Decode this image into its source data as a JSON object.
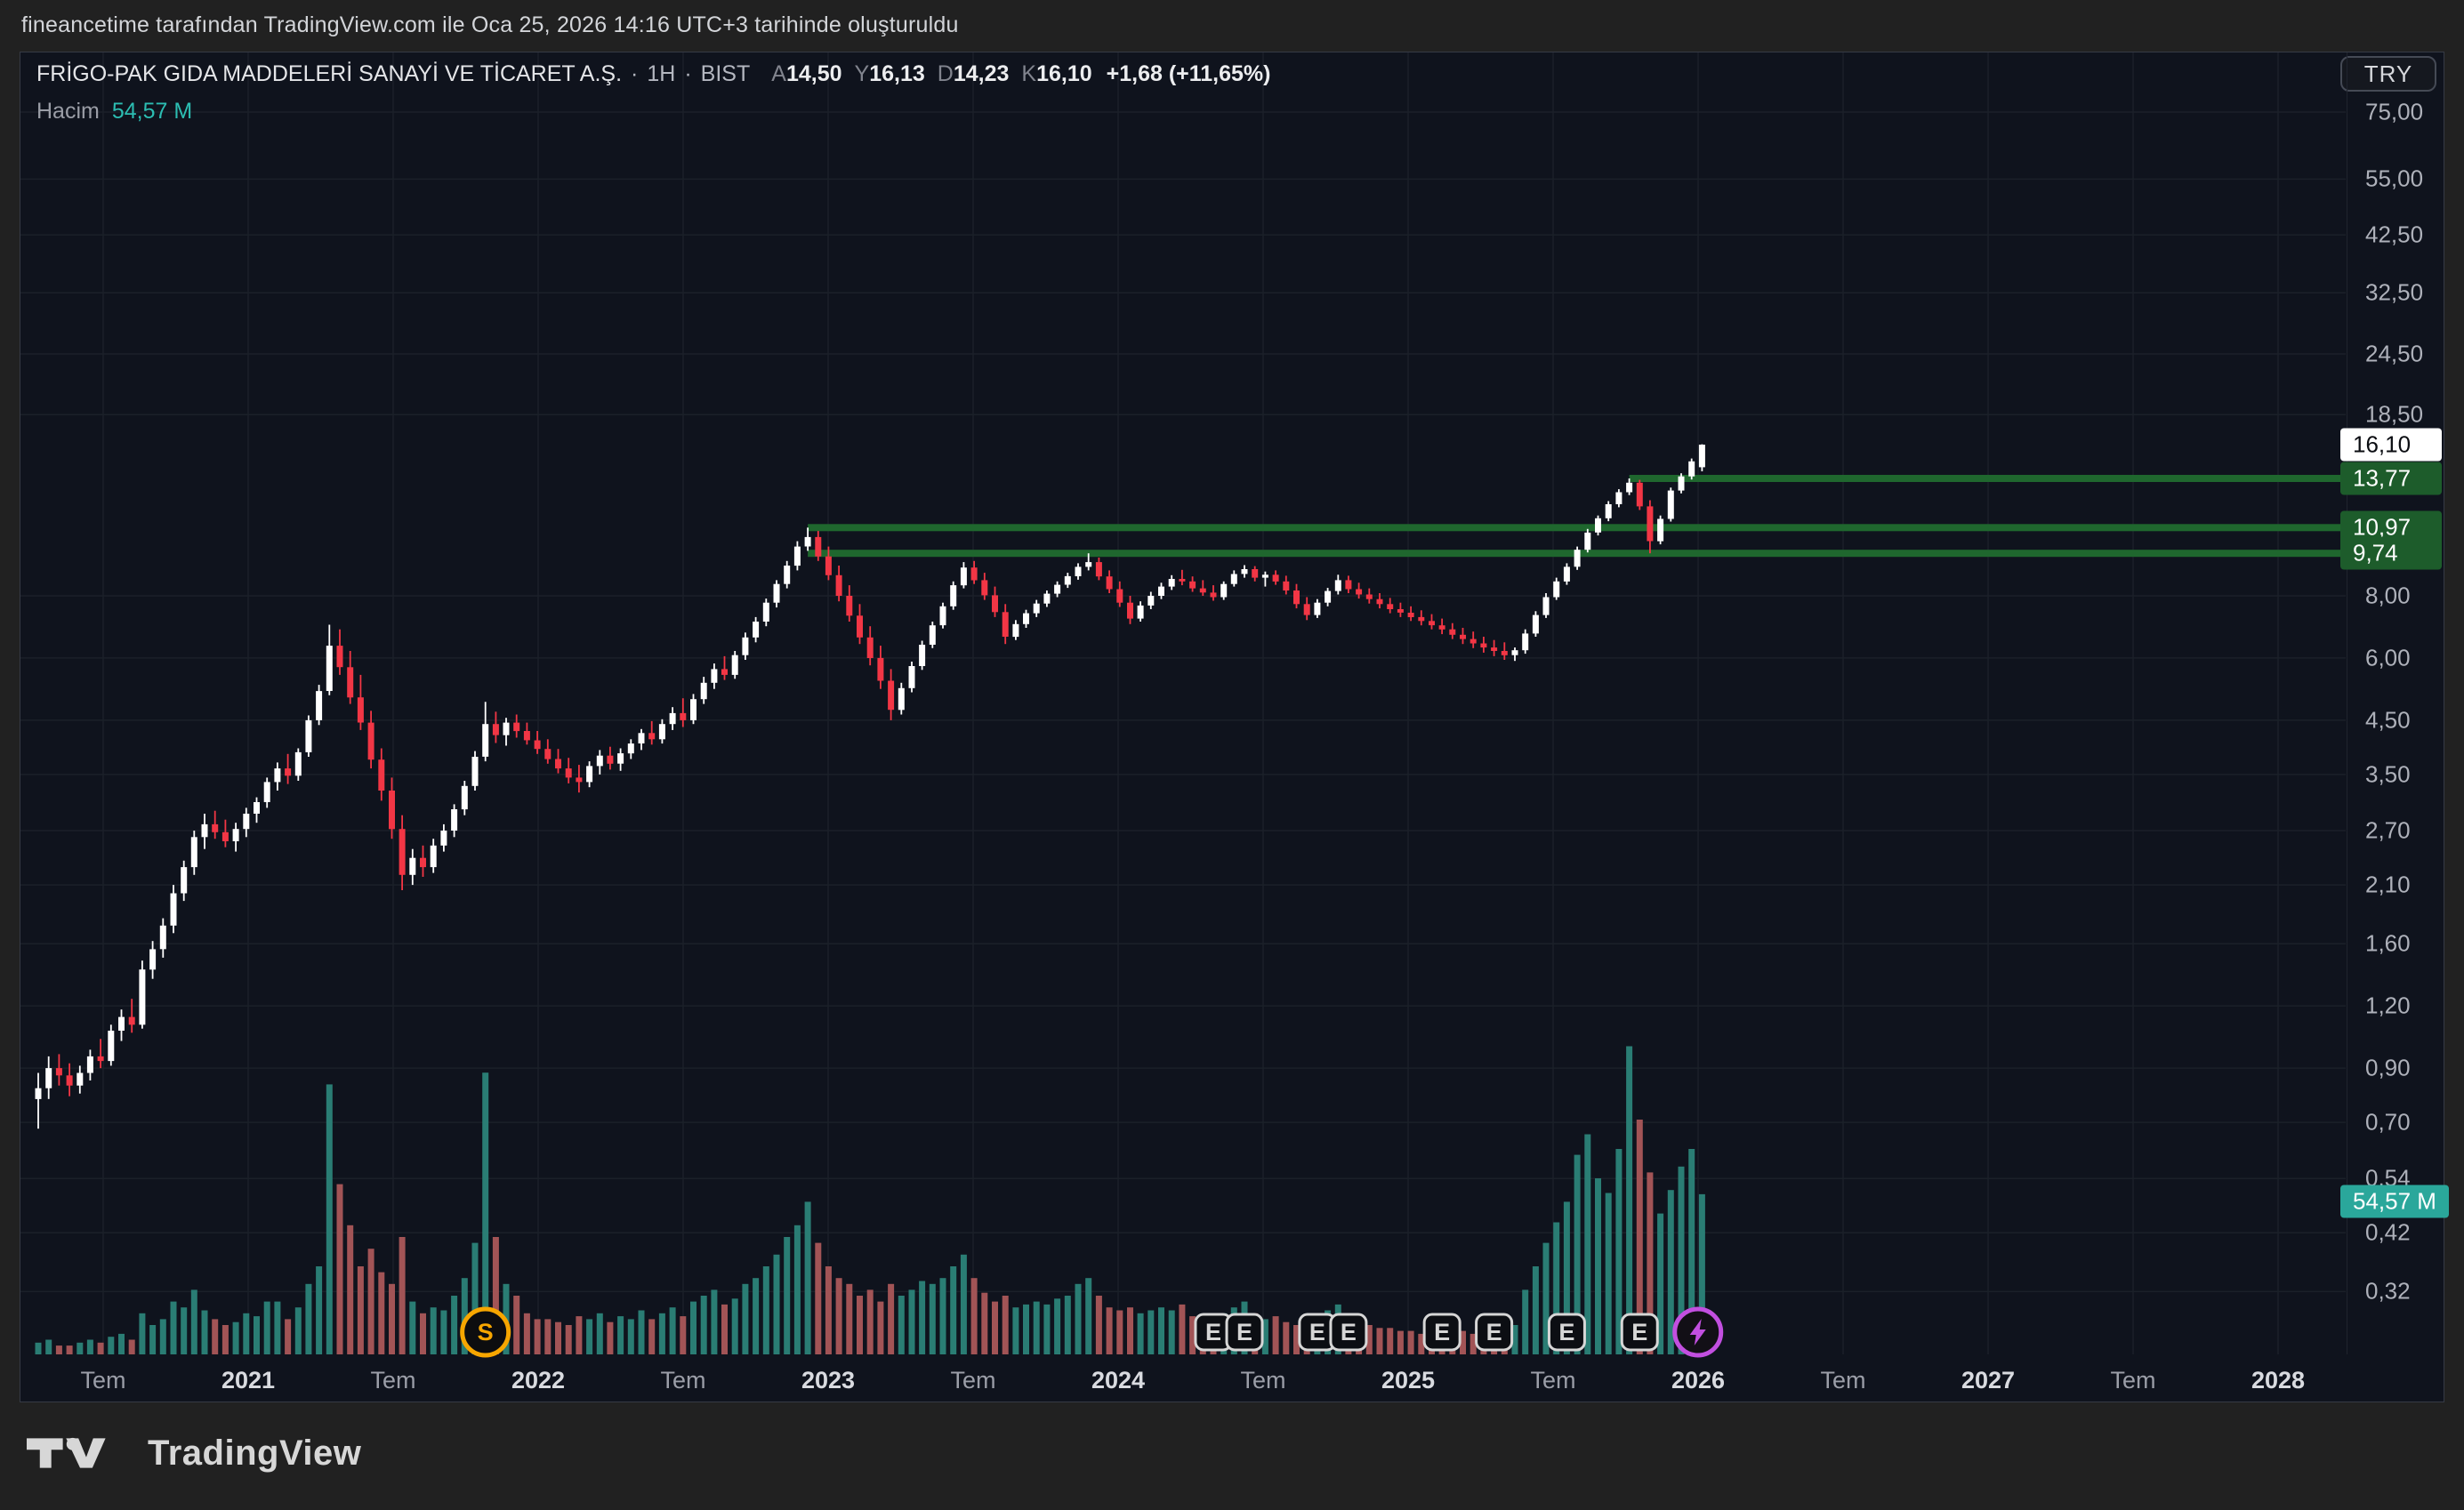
{
  "attribution": "fineancetime tarafından TradingView.com ile Oca 25, 2026 14:16 UTC+3 tarihinde oluşturuldu",
  "legend": {
    "symbol": "FRİGO-PAK GIDA MADDELERİ SANAYİ VE TİCARET A.Ş.",
    "separator": "·",
    "interval": "1H",
    "exchange": "BIST",
    "ohlc": [
      {
        "k": "A",
        "v": "14,50"
      },
      {
        "k": "Y",
        "v": "16,13"
      },
      {
        "k": "D",
        "v": "14,23"
      },
      {
        "k": "K",
        "v": "16,10"
      }
    ],
    "change": "+1,68 (+11,65%)",
    "volume_label": "Hacim",
    "volume_value": "54,57 M"
  },
  "currency_button": "TRY",
  "logo_text": "TradingView",
  "price_axis": {
    "ticks": [
      {
        "label": "75,00",
        "price": 75
      },
      {
        "label": "55,00",
        "price": 55
      },
      {
        "label": "42,50",
        "price": 42.5
      },
      {
        "label": "32,50",
        "price": 32.5
      },
      {
        "label": "24,50",
        "price": 24.5
      },
      {
        "label": "18,50",
        "price": 18.5
      },
      {
        "label": "8,00",
        "price": 8
      },
      {
        "label": "6,00",
        "price": 6
      },
      {
        "label": "4,50",
        "price": 4.5
      },
      {
        "label": "3,50",
        "price": 3.5
      },
      {
        "label": "2,70",
        "price": 2.7
      },
      {
        "label": "2,10",
        "price": 2.1
      },
      {
        "label": "1,60",
        "price": 1.6
      },
      {
        "label": "1,20",
        "price": 1.2
      },
      {
        "label": "0,90",
        "price": 0.9
      },
      {
        "label": "0,70",
        "price": 0.7
      },
      {
        "label": "0,54",
        "price": 0.54
      },
      {
        "label": "0,42",
        "price": 0.42
      },
      {
        "label": "0,32",
        "price": 0.32
      }
    ],
    "last_price": {
      "label": "16,10",
      "price": 16.1
    },
    "level_labels": [
      {
        "label": "13,77",
        "price": 13.77
      },
      {
        "label": "10,97",
        "price": 10.97
      },
      {
        "label": "9,74",
        "price": 9.74
      }
    ],
    "volume_chip": {
      "label": "54,57 M"
    }
  },
  "time_axis": {
    "ticks": [
      {
        "label": "Tem",
        "t": 2020.5,
        "major": false
      },
      {
        "label": "2021",
        "t": 2021.0,
        "major": true
      },
      {
        "label": "Tem",
        "t": 2021.5,
        "major": false
      },
      {
        "label": "2022",
        "t": 2022.0,
        "major": true
      },
      {
        "label": "Tem",
        "t": 2022.5,
        "major": false
      },
      {
        "label": "2023",
        "t": 2023.0,
        "major": true
      },
      {
        "label": "Tem",
        "t": 2023.5,
        "major": false
      },
      {
        "label": "2024",
        "t": 2024.0,
        "major": true
      },
      {
        "label": "Tem",
        "t": 2024.5,
        "major": false
      },
      {
        "label": "2025",
        "t": 2025.0,
        "major": true
      },
      {
        "label": "Tem",
        "t": 2025.5,
        "major": false
      },
      {
        "label": "2026",
        "t": 2026.0,
        "major": true
      },
      {
        "label": "Tem",
        "t": 2026.5,
        "major": false
      },
      {
        "label": "2027",
        "t": 2027.0,
        "major": true
      },
      {
        "label": "Tem",
        "t": 2027.5,
        "major": false
      },
      {
        "label": "2028",
        "t": 2028.0,
        "major": true
      }
    ]
  },
  "chart_data": {
    "type": "candlestick+volume",
    "symbol": "FRİGO-PAK GIDA MADDELERİ SANAYİ VE TİCARET A.Ş.",
    "exchange": "BIST",
    "interval": "1H",
    "currency": "TRY",
    "scale": "log",
    "ylim": [
      0.2,
      98
    ],
    "x_range_years": [
      2020.3,
      2028.25
    ],
    "last_ohlc": {
      "open": 14.5,
      "high": 16.13,
      "low": 14.23,
      "close": 16.1,
      "change": 1.68,
      "change_pct": 11.65
    },
    "last_volume_m": 54.57,
    "colors": {
      "up": "#ffffff",
      "down": "#f23645",
      "vol_up": "#2a7d74",
      "vol_down": "#a25456",
      "grid": "#1b2029",
      "level": "#1f672e",
      "level_chip": "#1d5c2b",
      "last_chip_bg": "#ffffff",
      "last_chip_text": "#0b0d12",
      "vol_chip": "#2aa79b",
      "earnings_badge": "#d6d6d6",
      "split_badge": "#f7a600",
      "upcoming_badge": "#c24fe0"
    },
    "levels": [
      {
        "price": 13.77,
        "from_index": 153
      },
      {
        "price": 10.97,
        "from_index": 74
      },
      {
        "price": 9.74,
        "from_index": 74
      }
    ],
    "events": {
      "split_indices": [
        43
      ],
      "split_label": "S",
      "earnings_indices": [
        113,
        116,
        123,
        126,
        135,
        140,
        147,
        154
      ],
      "earnings_label": "E",
      "upcoming_index": 159.6
    },
    "candles": [
      [
        0.78,
        0.88,
        0.68,
        0.82,
        4
      ],
      [
        0.82,
        0.95,
        0.78,
        0.9,
        5
      ],
      [
        0.9,
        0.96,
        0.83,
        0.87,
        3
      ],
      [
        0.87,
        0.92,
        0.79,
        0.83,
        3
      ],
      [
        0.83,
        0.91,
        0.8,
        0.88,
        4
      ],
      [
        0.88,
        0.98,
        0.85,
        0.95,
        5
      ],
      [
        0.95,
        1.03,
        0.9,
        0.93,
        4
      ],
      [
        0.93,
        1.1,
        0.91,
        1.07,
        6
      ],
      [
        1.07,
        1.18,
        1.02,
        1.14,
        7
      ],
      [
        1.14,
        1.24,
        1.06,
        1.1,
        5
      ],
      [
        1.1,
        1.48,
        1.08,
        1.42,
        14
      ],
      [
        1.42,
        1.62,
        1.36,
        1.56,
        10
      ],
      [
        1.56,
        1.8,
        1.5,
        1.74,
        12
      ],
      [
        1.74,
        2.1,
        1.68,
        2.02,
        18
      ],
      [
        2.02,
        2.35,
        1.95,
        2.28,
        16
      ],
      [
        2.28,
        2.7,
        2.2,
        2.62,
        22
      ],
      [
        2.62,
        2.92,
        2.48,
        2.78,
        15
      ],
      [
        2.78,
        2.96,
        2.6,
        2.68,
        12
      ],
      [
        2.68,
        2.84,
        2.5,
        2.57,
        10
      ],
      [
        2.57,
        2.8,
        2.45,
        2.72,
        11
      ],
      [
        2.72,
        3.0,
        2.62,
        2.92,
        14
      ],
      [
        2.92,
        3.15,
        2.8,
        3.08,
        13
      ],
      [
        3.08,
        3.45,
        3.0,
        3.38,
        18
      ],
      [
        3.38,
        3.7,
        3.25,
        3.6,
        18
      ],
      [
        3.6,
        3.85,
        3.35,
        3.48,
        12
      ],
      [
        3.48,
        3.95,
        3.4,
        3.88,
        16
      ],
      [
        3.88,
        4.6,
        3.8,
        4.5,
        24
      ],
      [
        4.5,
        5.3,
        4.4,
        5.15,
        30
      ],
      [
        5.15,
        7.0,
        5.05,
        6.35,
        92
      ],
      [
        6.35,
        6.85,
        5.55,
        5.75,
        58
      ],
      [
        5.75,
        6.2,
        4.85,
        5.0,
        44
      ],
      [
        5.0,
        5.55,
        4.3,
        4.45,
        30
      ],
      [
        4.45,
        4.7,
        3.6,
        3.75,
        36
      ],
      [
        3.75,
        3.95,
        3.1,
        3.25,
        28
      ],
      [
        3.25,
        3.45,
        2.6,
        2.72,
        24
      ],
      [
        2.72,
        2.9,
        2.05,
        2.2,
        40
      ],
      [
        2.2,
        2.48,
        2.1,
        2.38,
        18
      ],
      [
        2.38,
        2.52,
        2.18,
        2.28,
        14
      ],
      [
        2.28,
        2.6,
        2.22,
        2.52,
        16
      ],
      [
        2.52,
        2.78,
        2.45,
        2.7,
        15
      ],
      [
        2.7,
        3.05,
        2.62,
        2.98,
        20
      ],
      [
        2.98,
        3.4,
        2.9,
        3.32,
        26
      ],
      [
        3.32,
        3.9,
        3.25,
        3.8,
        38
      ],
      [
        3.8,
        4.9,
        3.72,
        4.42,
        96
      ],
      [
        4.42,
        4.68,
        4.05,
        4.2,
        40
      ],
      [
        4.2,
        4.55,
        4.0,
        4.45,
        24
      ],
      [
        4.45,
        4.62,
        4.15,
        4.28,
        20
      ],
      [
        4.28,
        4.45,
        4.02,
        4.1,
        14
      ],
      [
        4.1,
        4.28,
        3.85,
        3.94,
        12
      ],
      [
        3.94,
        4.12,
        3.68,
        3.76,
        12
      ],
      [
        3.76,
        3.94,
        3.52,
        3.6,
        11
      ],
      [
        3.6,
        3.78,
        3.36,
        3.45,
        10
      ],
      [
        3.45,
        3.66,
        3.22,
        3.38,
        13
      ],
      [
        3.38,
        3.72,
        3.3,
        3.64,
        12
      ],
      [
        3.64,
        3.92,
        3.5,
        3.82,
        14
      ],
      [
        3.82,
        3.98,
        3.58,
        3.68,
        11
      ],
      [
        3.68,
        3.95,
        3.56,
        3.86,
        13
      ],
      [
        3.86,
        4.12,
        3.76,
        4.04,
        12
      ],
      [
        4.04,
        4.32,
        3.92,
        4.24,
        15
      ],
      [
        4.24,
        4.48,
        4.02,
        4.12,
        12
      ],
      [
        4.12,
        4.52,
        4.04,
        4.42,
        14
      ],
      [
        4.42,
        4.78,
        4.3,
        4.65,
        16
      ],
      [
        4.65,
        4.98,
        4.36,
        4.5,
        13
      ],
      [
        4.5,
        5.08,
        4.42,
        4.96,
        18
      ],
      [
        4.96,
        5.5,
        4.85,
        5.35,
        20
      ],
      [
        5.35,
        5.85,
        5.2,
        5.7,
        22
      ],
      [
        5.7,
        6.05,
        5.42,
        5.55,
        17
      ],
      [
        5.55,
        6.2,
        5.45,
        6.08,
        19
      ],
      [
        6.08,
        6.75,
        5.95,
        6.6,
        24
      ],
      [
        6.6,
        7.25,
        6.45,
        7.1,
        26
      ],
      [
        7.1,
        7.9,
        6.95,
        7.75,
        30
      ],
      [
        7.75,
        8.6,
        7.58,
        8.45,
        34
      ],
      [
        8.45,
        9.4,
        8.28,
        9.2,
        40
      ],
      [
        9.2,
        10.3,
        9.0,
        10.05,
        44
      ],
      [
        10.05,
        10.97,
        9.85,
        10.5,
        52
      ],
      [
        10.5,
        10.8,
        9.4,
        9.6,
        38
      ],
      [
        9.6,
        10.05,
        8.6,
        8.8,
        30
      ],
      [
        8.8,
        9.2,
        7.8,
        8.0,
        26
      ],
      [
        8.0,
        8.4,
        7.1,
        7.3,
        24
      ],
      [
        7.3,
        7.7,
        6.4,
        6.6,
        20
      ],
      [
        6.6,
        6.95,
        5.8,
        6.0,
        22
      ],
      [
        6.0,
        6.35,
        5.2,
        5.4,
        18
      ],
      [
        5.4,
        5.7,
        4.5,
        4.72,
        24
      ],
      [
        4.72,
        5.35,
        4.62,
        5.22,
        20
      ],
      [
        5.22,
        5.9,
        5.12,
        5.78,
        22
      ],
      [
        5.78,
        6.5,
        5.68,
        6.38,
        25
      ],
      [
        6.38,
        7.1,
        6.28,
        6.98,
        24
      ],
      [
        6.98,
        7.75,
        6.88,
        7.62,
        26
      ],
      [
        7.62,
        8.55,
        7.5,
        8.4,
        30
      ],
      [
        8.4,
        9.35,
        8.28,
        9.12,
        34
      ],
      [
        9.12,
        9.4,
        8.45,
        8.6,
        26
      ],
      [
        8.6,
        8.9,
        7.85,
        8.02,
        21
      ],
      [
        8.02,
        8.35,
        7.25,
        7.42,
        18
      ],
      [
        7.42,
        7.7,
        6.4,
        6.62,
        20
      ],
      [
        6.62,
        7.15,
        6.52,
        7.02,
        16
      ],
      [
        7.02,
        7.5,
        6.9,
        7.38,
        17
      ],
      [
        7.38,
        7.85,
        7.25,
        7.72,
        18
      ],
      [
        7.72,
        8.2,
        7.6,
        8.08,
        17
      ],
      [
        8.08,
        8.55,
        7.95,
        8.42,
        19
      ],
      [
        8.42,
        8.9,
        8.3,
        8.76,
        20
      ],
      [
        8.76,
        9.3,
        8.62,
        9.15,
        24
      ],
      [
        9.15,
        9.74,
        9.0,
        9.35,
        26
      ],
      [
        9.35,
        9.55,
        8.6,
        8.75,
        20
      ],
      [
        8.75,
        9.0,
        8.1,
        8.25,
        16
      ],
      [
        8.25,
        8.55,
        7.6,
        7.75,
        15
      ],
      [
        7.75,
        8.0,
        7.02,
        7.2,
        16
      ],
      [
        7.2,
        7.8,
        7.1,
        7.65,
        14
      ],
      [
        7.65,
        8.15,
        7.52,
        8.0,
        15
      ],
      [
        8.0,
        8.5,
        7.88,
        8.35,
        16
      ],
      [
        8.35,
        8.8,
        8.22,
        8.65,
        15
      ],
      [
        8.65,
        9.02,
        8.4,
        8.55,
        17
      ],
      [
        8.55,
        8.75,
        8.15,
        8.28,
        13
      ],
      [
        8.28,
        8.6,
        8.0,
        8.12,
        12
      ],
      [
        8.12,
        8.4,
        7.82,
        7.95,
        12
      ],
      [
        7.95,
        8.55,
        7.85,
        8.45,
        14
      ],
      [
        8.45,
        9.0,
        8.35,
        8.85,
        16
      ],
      [
        8.85,
        9.22,
        8.7,
        9.05,
        18
      ],
      [
        9.05,
        9.18,
        8.55,
        8.7,
        14
      ],
      [
        8.7,
        8.95,
        8.35,
        8.82,
        12
      ],
      [
        8.82,
        9.0,
        8.42,
        8.55,
        13
      ],
      [
        8.55,
        8.78,
        8.05,
        8.2,
        11
      ],
      [
        8.2,
        8.45,
        7.55,
        7.7,
        10
      ],
      [
        7.7,
        7.95,
        7.15,
        7.32,
        12
      ],
      [
        7.32,
        7.88,
        7.22,
        7.75,
        13
      ],
      [
        7.75,
        8.3,
        7.62,
        8.18,
        15
      ],
      [
        8.18,
        8.82,
        8.05,
        8.6,
        17
      ],
      [
        8.6,
        8.78,
        8.1,
        8.25,
        12
      ],
      [
        8.25,
        8.5,
        7.9,
        8.05,
        10
      ],
      [
        8.05,
        8.28,
        7.72,
        7.88,
        10
      ],
      [
        7.88,
        8.1,
        7.55,
        7.7,
        9
      ],
      [
        7.7,
        7.92,
        7.38,
        7.52,
        9
      ],
      [
        7.52,
        7.75,
        7.25,
        7.4,
        8
      ],
      [
        7.4,
        7.62,
        7.12,
        7.25,
        8
      ],
      [
        7.25,
        7.48,
        6.98,
        7.12,
        7
      ],
      [
        7.12,
        7.35,
        6.85,
        6.98,
        8
      ],
      [
        6.98,
        7.2,
        6.7,
        6.85,
        7
      ],
      [
        6.85,
        7.05,
        6.55,
        6.68,
        9
      ],
      [
        6.68,
        6.9,
        6.4,
        6.55,
        8
      ],
      [
        6.55,
        6.78,
        6.28,
        6.42,
        7
      ],
      [
        6.42,
        6.62,
        6.15,
        6.3,
        8
      ],
      [
        6.3,
        6.52,
        6.05,
        6.2,
        7
      ],
      [
        6.2,
        6.45,
        5.95,
        6.08,
        9
      ],
      [
        6.08,
        6.3,
        5.92,
        6.22,
        10
      ],
      [
        6.22,
        6.85,
        6.12,
        6.72,
        22
      ],
      [
        6.72,
        7.45,
        6.62,
        7.32,
        30
      ],
      [
        7.32,
        8.1,
        7.22,
        7.95,
        38
      ],
      [
        7.95,
        8.7,
        7.85,
        8.55,
        45
      ],
      [
        8.55,
        9.3,
        8.42,
        9.15,
        52
      ],
      [
        9.15,
        10.05,
        9.02,
        9.9,
        68
      ],
      [
        9.9,
        10.9,
        9.78,
        10.72,
        75
      ],
      [
        10.72,
        11.6,
        10.58,
        11.45,
        60
      ],
      [
        11.45,
        12.4,
        11.3,
        12.22,
        55
      ],
      [
        12.22,
        13.1,
        12.05,
        12.92,
        70
      ],
      [
        12.92,
        13.77,
        12.75,
        13.5,
        105
      ],
      [
        13.5,
        13.68,
        11.9,
        12.1,
        80
      ],
      [
        12.1,
        12.45,
        9.74,
        10.3,
        62
      ],
      [
        10.3,
        11.6,
        10.15,
        11.42,
        48
      ],
      [
        11.42,
        13.2,
        11.28,
        13.02,
        56
      ],
      [
        13.02,
        14.1,
        12.85,
        13.9,
        64
      ],
      [
        13.9,
        15.1,
        13.7,
        14.9,
        70
      ],
      [
        14.5,
        16.13,
        14.23,
        16.1,
        54.57
      ]
    ]
  }
}
